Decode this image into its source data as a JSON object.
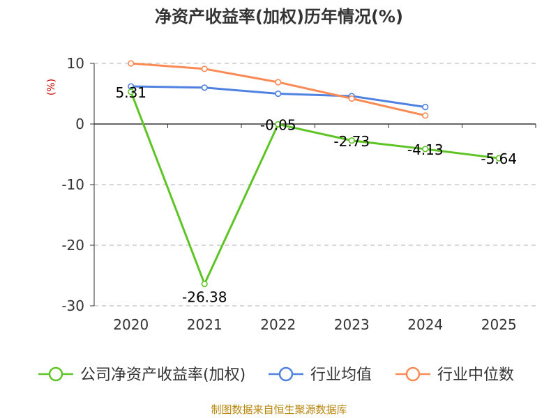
{
  "chart_data": {
    "type": "line",
    "title": "净资产收益率(加权)历年情况(%)",
    "unit_label": "(%)",
    "categories": [
      "2020",
      "2021",
      "2022",
      "2023",
      "2024",
      "2025"
    ],
    "ylim": [
      -30,
      10
    ],
    "yticks": [
      10,
      0,
      -10,
      -20,
      -30
    ],
    "grid": true,
    "series": [
      {
        "name": "公司净资产收益率(加权)",
        "color": "#5ec425",
        "values": [
          5.31,
          -26.38,
          -0.05,
          -2.73,
          -4.13,
          -5.64
        ],
        "labels": [
          "5.31",
          "-26.38",
          "-0.05",
          "-2.73",
          "-4.13",
          "-5.64"
        ]
      },
      {
        "name": "行业均值",
        "color": "#4f81e0",
        "values": [
          6.2,
          6.0,
          5.0,
          4.6,
          2.8,
          null
        ]
      },
      {
        "name": "行业中位数",
        "color": "#fa8a55",
        "values": [
          10.0,
          9.1,
          6.9,
          4.2,
          1.4,
          null
        ]
      }
    ],
    "legend_position": "bottom",
    "source": "制图数据来自恒生聚源数据库"
  }
}
